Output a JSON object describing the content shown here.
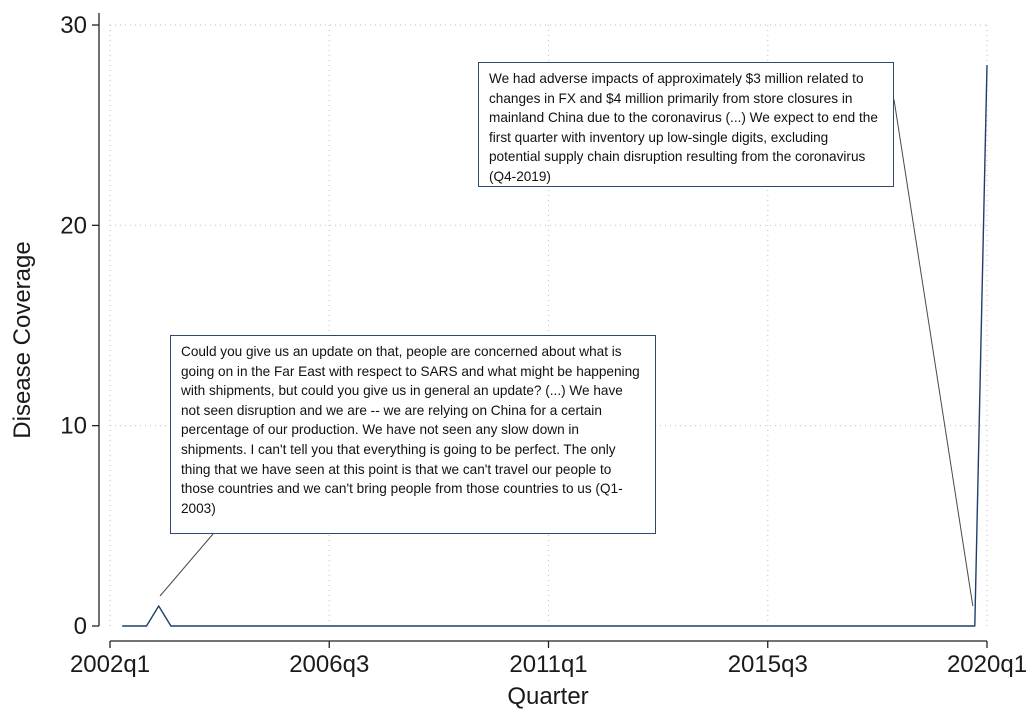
{
  "chart_data": {
    "type": "line",
    "title": "",
    "xlabel": "Quarter",
    "ylabel": "Disease Coverage",
    "x_ticks": [
      "2002q1",
      "2006q3",
      "2011q1",
      "2015q3",
      "2020q1"
    ],
    "y_ticks": [
      "0",
      "10",
      "20",
      "30"
    ],
    "xlim": [
      "2002q1",
      "2020q1"
    ],
    "ylim": [
      0,
      30
    ],
    "grid": true,
    "line_color": "#1f3f6b",
    "grid_color": "#c8c8c8",
    "series": [
      {
        "x": [
          "2002q2",
          "2002q3",
          "2002q4",
          "2003q1",
          "2003q2",
          "2003q3",
          "2003q4",
          "2004q1",
          "2019q1",
          "2019q2",
          "2019q3",
          "2019q4",
          "2020q1"
        ],
        "values": [
          0,
          0,
          0,
          1,
          0,
          0,
          0,
          0,
          0,
          0,
          0,
          0,
          28
        ]
      }
    ],
    "annotations": [
      {
        "points_to": "2019q4",
        "text": "We had adverse impacts of approximately $3 million related to changes in FX and $4 million primarily from store closures in mainland China due to the coronavirus (...) We expect to end the first quarter with inventory up low-single digits, excluding potential supply chain disruption resulting from the coronavirus (Q4-2019)"
      },
      {
        "points_to": "2003q1",
        "text": "Could you give us an update on that, people are concerned about what is going on in the Far East with respect to SARS and what might be happening with shipments, but could you give us in general an update? (...) We have not seen disruption and we are -- we are relying on China for a certain percentage of our production.  We have not seen any slow down in shipments.  I can't tell you that everything is going to be perfect.  The only thing that we have seen at this point is that we can't travel our people to those countries and we can't bring people from those countries to us (Q1-2003)"
      }
    ]
  }
}
